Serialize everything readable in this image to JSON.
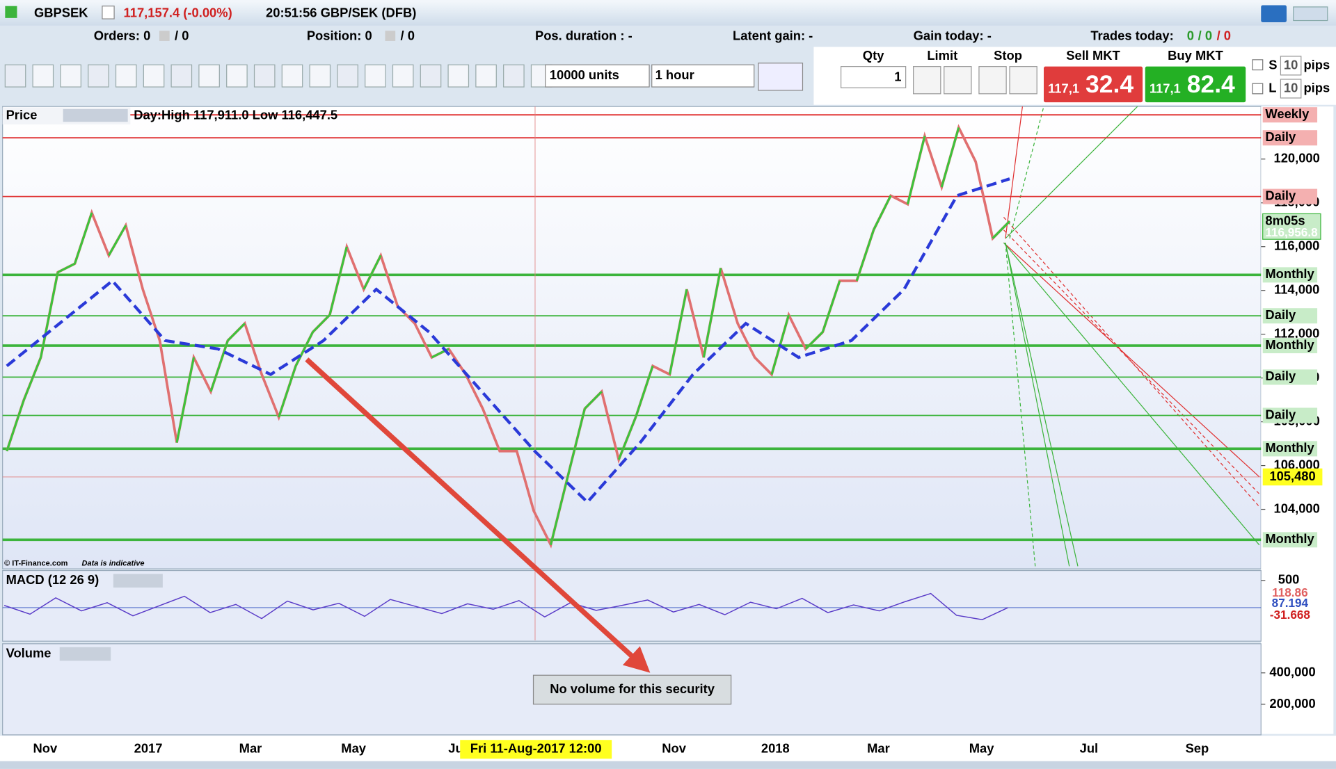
{
  "header": {
    "symbol": "GBPSEK",
    "quote": "117,157.4 (-0.00%)",
    "time": "20:51:56 GBP/SEK (DFB)"
  },
  "status": {
    "orders": "Orders: 0",
    "orders_sep": "/ 0",
    "position": "Position: 0",
    "position_sep": "/ 0",
    "duration": "Pos. duration : -",
    "latent": "Latent gain: -",
    "gain_today": "Gain today: -",
    "trades_label": "Trades today:",
    "trades": [
      "0",
      "/ 0",
      "/ 0"
    ]
  },
  "toolbar": {
    "units": "10000 units",
    "interval": "1 hour"
  },
  "trade": {
    "qty_label": "Qty",
    "qty": "1",
    "limit": "Limit",
    "stop": "Stop",
    "sell_label": "Sell MKT",
    "buy_label": "Buy MKT",
    "sell_big": "117,1",
    "sell_small": "32.4",
    "buy_big": "117,1",
    "buy_small": "82.4",
    "s": "S",
    "l": "L",
    "s_pips": "10",
    "l_pips": "10",
    "pips": "pips"
  },
  "chart_data": {
    "type": "line",
    "title": "Price",
    "day_range": "Day:High 117,911.0 Low 116,447.5",
    "credit": "© IT-Finance.com",
    "disclaimer": "Data is indicative",
    "ylim": [
      101400,
      122400
    ],
    "yticks": [
      {
        "value": 104000,
        "label": "104,000"
      },
      {
        "value": 106000,
        "label": "106,000"
      },
      {
        "value": 108000,
        "label": "108,000"
      },
      {
        "value": 110000,
        "label": "110,000"
      },
      {
        "value": 112000,
        "label": "112,000"
      },
      {
        "value": 114000,
        "label": "114,000"
      },
      {
        "value": 116000,
        "label": "116,000"
      },
      {
        "value": 118000,
        "label": "118,000"
      },
      {
        "value": 120000,
        "label": "120,000"
      }
    ],
    "x_labels": [
      "Nov",
      "2017",
      "Mar",
      "May",
      "Jul",
      "Nov",
      "2018",
      "Mar",
      "May",
      "Jul",
      "Sep"
    ],
    "up_color": "#3cc43c",
    "down_color": "#e07070",
    "series": [
      {
        "color": "#e07070",
        "values": [
          106660,
          108990,
          110940,
          114830,
          115220,
          117550,
          115600,
          116970,
          114050,
          111710,
          107050,
          110940,
          109380,
          111710,
          112490,
          110160,
          108210,
          110550,
          112100,
          112880,
          115990,
          114050,
          115600,
          113270,
          112490,
          110940,
          111330,
          110160,
          108600,
          106660,
          106660,
          103930,
          102380,
          105490,
          108600,
          109380,
          106270,
          108210,
          110550,
          110160,
          114050,
          110940,
          115020,
          112490,
          110940,
          110160,
          112880,
          111330,
          112100,
          114440,
          114440,
          116770,
          118330,
          117940,
          121050,
          118720,
          121440,
          119880,
          116380,
          117160
        ]
      },
      {
        "color": "#2a3ad8",
        "dashed": true,
        "values": [
          110550,
          112490,
          114440,
          111710,
          111330,
          110160,
          111710,
          114050,
          112100,
          109380,
          106660,
          104330,
          107050,
          110160,
          112490,
          110940,
          111710,
          114050,
          118330,
          119100
        ]
      }
    ],
    "levels": [
      {
        "label": "Weekly",
        "value": 122020,
        "color": "#e03030"
      },
      {
        "label": "Daily",
        "value": 120970,
        "color": "#e03030"
      },
      {
        "label": "Daily",
        "value": 118290,
        "color": "#e03030"
      },
      {
        "label": "Monthly",
        "value": 114710,
        "color": "#3cb43c"
      },
      {
        "label": "Daily",
        "value": 112840,
        "color": "#3cb43c"
      },
      {
        "label": "Monthly",
        "value": 111480,
        "color": "#3cb43c"
      },
      {
        "label": "Daily",
        "value": 110040,
        "color": "#3cb43c"
      },
      {
        "label": "Daily",
        "value": 108290,
        "color": "#3cb43c"
      },
      {
        "label": "Monthly",
        "value": 106770,
        "color": "#3cb43c"
      },
      {
        "label": "Monthly",
        "value": 102610,
        "color": "#3cb43c"
      }
    ],
    "timer": "8m05s",
    "last": {
      "value": 116956.8,
      "label": "116,956.8"
    },
    "crosshair": {
      "date": "Fri 11-Aug-2017 12:00",
      "value": 105480,
      "label": "105,480"
    }
  },
  "macd": {
    "title": "MACD (12 26 9)",
    "ylim": [
      -600,
      650
    ],
    "yticks": [
      {
        "value": 500,
        "label": "500"
      }
    ],
    "signal": "118.86",
    "macd": "87.194",
    "hist": "-31.668",
    "color": "#5a3cc8",
    "values": [
      40,
      -120,
      180,
      -60,
      90,
      -150,
      30,
      210,
      -90,
      60,
      -200,
      120,
      -40,
      80,
      -160,
      150,
      20,
      -110,
      70,
      -30,
      130,
      -170,
      90,
      -50,
      40,
      140,
      -80,
      60,
      -130,
      100,
      -20,
      170,
      -90,
      50,
      -60,
      110,
      260,
      -140,
      -220,
      0
    ]
  },
  "volume": {
    "title": "Volume",
    "ylim": [
      0,
      580000
    ],
    "yticks": [
      {
        "value": 200000,
        "label": "200,000"
      },
      {
        "value": 400000,
        "label": "400,000"
      }
    ],
    "message": "No volume for this security"
  }
}
